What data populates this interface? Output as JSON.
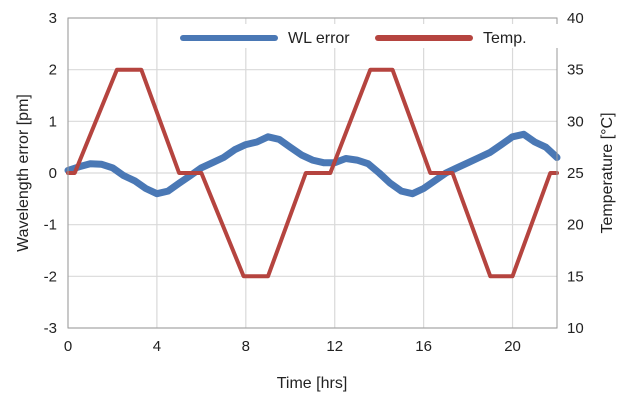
{
  "chart_data": {
    "type": "line",
    "xlabel": "Time [hrs]",
    "ylabel_left": "Wavelength error [pm]",
    "ylabel_right": "Temperature [°C]",
    "xlim": [
      0,
      22
    ],
    "ylim_left": [
      -3,
      3
    ],
    "ylim_right": [
      10,
      40
    ],
    "x_ticks": [
      0,
      4,
      8,
      12,
      16,
      20
    ],
    "y_ticks_left": [
      -3,
      -2,
      -1,
      0,
      1,
      2,
      3
    ],
    "y_ticks_right": [
      10,
      15,
      20,
      25,
      30,
      35,
      40
    ],
    "grid": true,
    "legend_position": "top-right",
    "series": [
      {
        "name": "WL error",
        "axis": "left",
        "color": "#4a78b5",
        "x": [
          0,
          0.5,
          1,
          1.5,
          2,
          2.5,
          3,
          3.5,
          4,
          4.5,
          5,
          5.5,
          6,
          6.5,
          7,
          7.5,
          8,
          8.5,
          9,
          9.5,
          10,
          10.5,
          11,
          11.5,
          12,
          12.5,
          13,
          13.5,
          14,
          14.5,
          15,
          15.5,
          16,
          16.5,
          17,
          17.5,
          18,
          18.5,
          19,
          19.5,
          20,
          20.5,
          21,
          21.5,
          22
        ],
        "values": [
          0.05,
          0.12,
          0.18,
          0.17,
          0.1,
          -0.05,
          -0.15,
          -0.3,
          -0.4,
          -0.35,
          -0.2,
          -0.05,
          0.1,
          0.2,
          0.3,
          0.45,
          0.55,
          0.6,
          0.7,
          0.65,
          0.5,
          0.35,
          0.25,
          0.2,
          0.2,
          0.28,
          0.25,
          0.18,
          0.0,
          -0.2,
          -0.35,
          -0.4,
          -0.3,
          -0.15,
          0.0,
          0.1,
          0.2,
          0.3,
          0.4,
          0.55,
          0.7,
          0.75,
          0.6,
          0.5,
          0.3
        ]
      },
      {
        "name": "Temp.",
        "axis": "right",
        "color": "#b5443f",
        "x": [
          0,
          0.3,
          2.2,
          3.3,
          5.0,
          6.0,
          7.9,
          9.0,
          10.7,
          11.8,
          13.6,
          14.6,
          16.3,
          17.3,
          19.0,
          20.0,
          21.7,
          22
        ],
        "values": [
          25,
          25,
          35,
          35,
          25,
          25,
          15,
          15,
          25,
          25,
          35,
          35,
          25,
          25,
          15,
          15,
          25,
          25
        ]
      }
    ]
  }
}
